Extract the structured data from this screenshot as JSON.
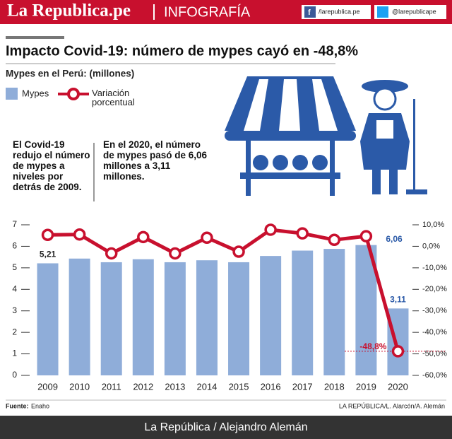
{
  "header": {
    "brand": "La Republica.pe",
    "section": "INFOGRAFÍA",
    "facebook": "/larepublica.pe",
    "twitter": "@larepublicape"
  },
  "annotations": [
    "El Covid-19 redujo el número de mypes a niveles por detrás de 2009.",
    "En el 2020, el número de mypes pasó de 6,06 millones a 3,11 millones."
  ],
  "source_label": "Fuente:",
  "source": "Enaho",
  "credit": "LA REPÚBLICA/L. Alarcón/A. Alemán",
  "footer": "La República / Alejandro Alemán",
  "chart_data": {
    "type": "bar",
    "title": "Impacto Covid-19: número de mypes cayó en -48,8%",
    "subtitle": "Mypes en el Perú: (millones)",
    "categories": [
      "2009",
      "2010",
      "2011",
      "2012",
      "2013",
      "2014",
      "2015",
      "2016",
      "2017",
      "2018",
      "2019",
      "2020"
    ],
    "series": [
      {
        "name": "Mypes",
        "type": "bar",
        "color": "#8fadd9",
        "values": [
          5.21,
          5.43,
          5.26,
          5.4,
          5.26,
          5.35,
          5.26,
          5.55,
          5.8,
          5.88,
          6.06,
          3.11
        ],
        "value_labels": [
          "5,21",
          null,
          null,
          null,
          null,
          null,
          null,
          null,
          null,
          null,
          "6,06",
          "3,11"
        ]
      },
      {
        "name": "Variación porcentual",
        "type": "line",
        "axis": "y2",
        "color": "#c8102e",
        "values": [
          5.3,
          5.5,
          -3.3,
          4.3,
          -3.3,
          4.0,
          -2.5,
          7.7,
          6.0,
          3.0,
          4.7,
          -48.8
        ],
        "value_labels": [
          null,
          null,
          null,
          null,
          null,
          null,
          null,
          null,
          null,
          null,
          null,
          "-48,8%"
        ]
      }
    ],
    "ylim": [
      0,
      7
    ],
    "yticks": [
      0,
      1,
      2,
      3,
      4,
      5,
      6,
      7
    ],
    "y2lim": [
      -60,
      10
    ],
    "y2ticks": [
      {
        "value": 10,
        "label": "10,0%"
      },
      {
        "value": 0,
        "label": "0,0%"
      },
      {
        "value": -10,
        "label": "-10,0%"
      },
      {
        "value": -20,
        "label": "-20,0%"
      },
      {
        "value": -30,
        "label": "-30,0%"
      },
      {
        "value": -40,
        "label": "-40,0%"
      },
      {
        "value": -50,
        "label": "-50,0%"
      },
      {
        "value": -60,
        "label": "-60,0%"
      }
    ]
  }
}
